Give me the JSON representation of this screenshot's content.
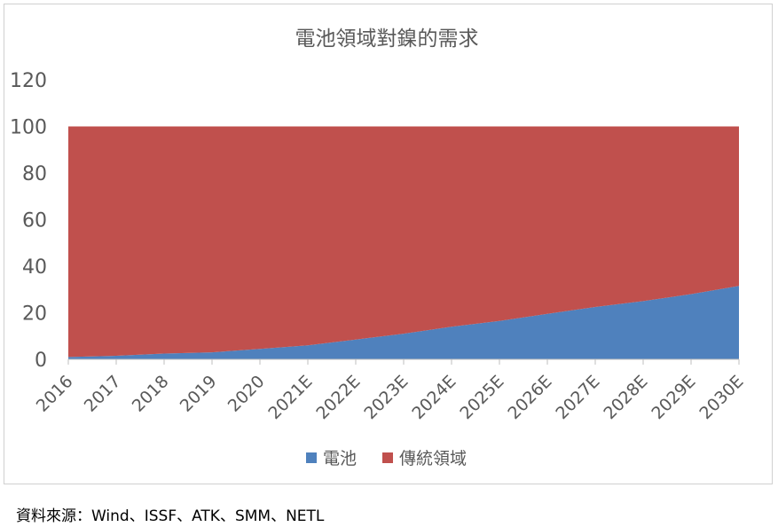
{
  "source_note": "資料來源：Wind、ISSF、ATK、SMM、NETL",
  "chart_data": {
    "type": "area",
    "stacked": true,
    "title": "電池領域對鎳的需求",
    "xlabel": "",
    "ylabel": "",
    "ylim": [
      0,
      120
    ],
    "yticks": [
      0,
      20,
      40,
      60,
      80,
      100,
      120
    ],
    "grid": false,
    "legend_position": "bottom",
    "categories": [
      "2016",
      "2017",
      "2018",
      "2019",
      "2020",
      "2021E",
      "2022E",
      "2023E",
      "2024E",
      "2025E",
      "2026E",
      "2027E",
      "2028E",
      "2029E",
      "2030E"
    ],
    "series": [
      {
        "name": "電池",
        "color": "#4F81BD",
        "values": [
          1,
          1.5,
          2.5,
          3,
          4.5,
          6,
          8.5,
          11,
          14,
          16.5,
          19.5,
          22.5,
          25,
          28,
          31.5
        ]
      },
      {
        "name": "傳統領域",
        "color": "#C0504D",
        "values": [
          99,
          98.5,
          97.5,
          97,
          95.5,
          94,
          91.5,
          89,
          86,
          83.5,
          80.5,
          77.5,
          75,
          72,
          68.5
        ]
      }
    ]
  }
}
